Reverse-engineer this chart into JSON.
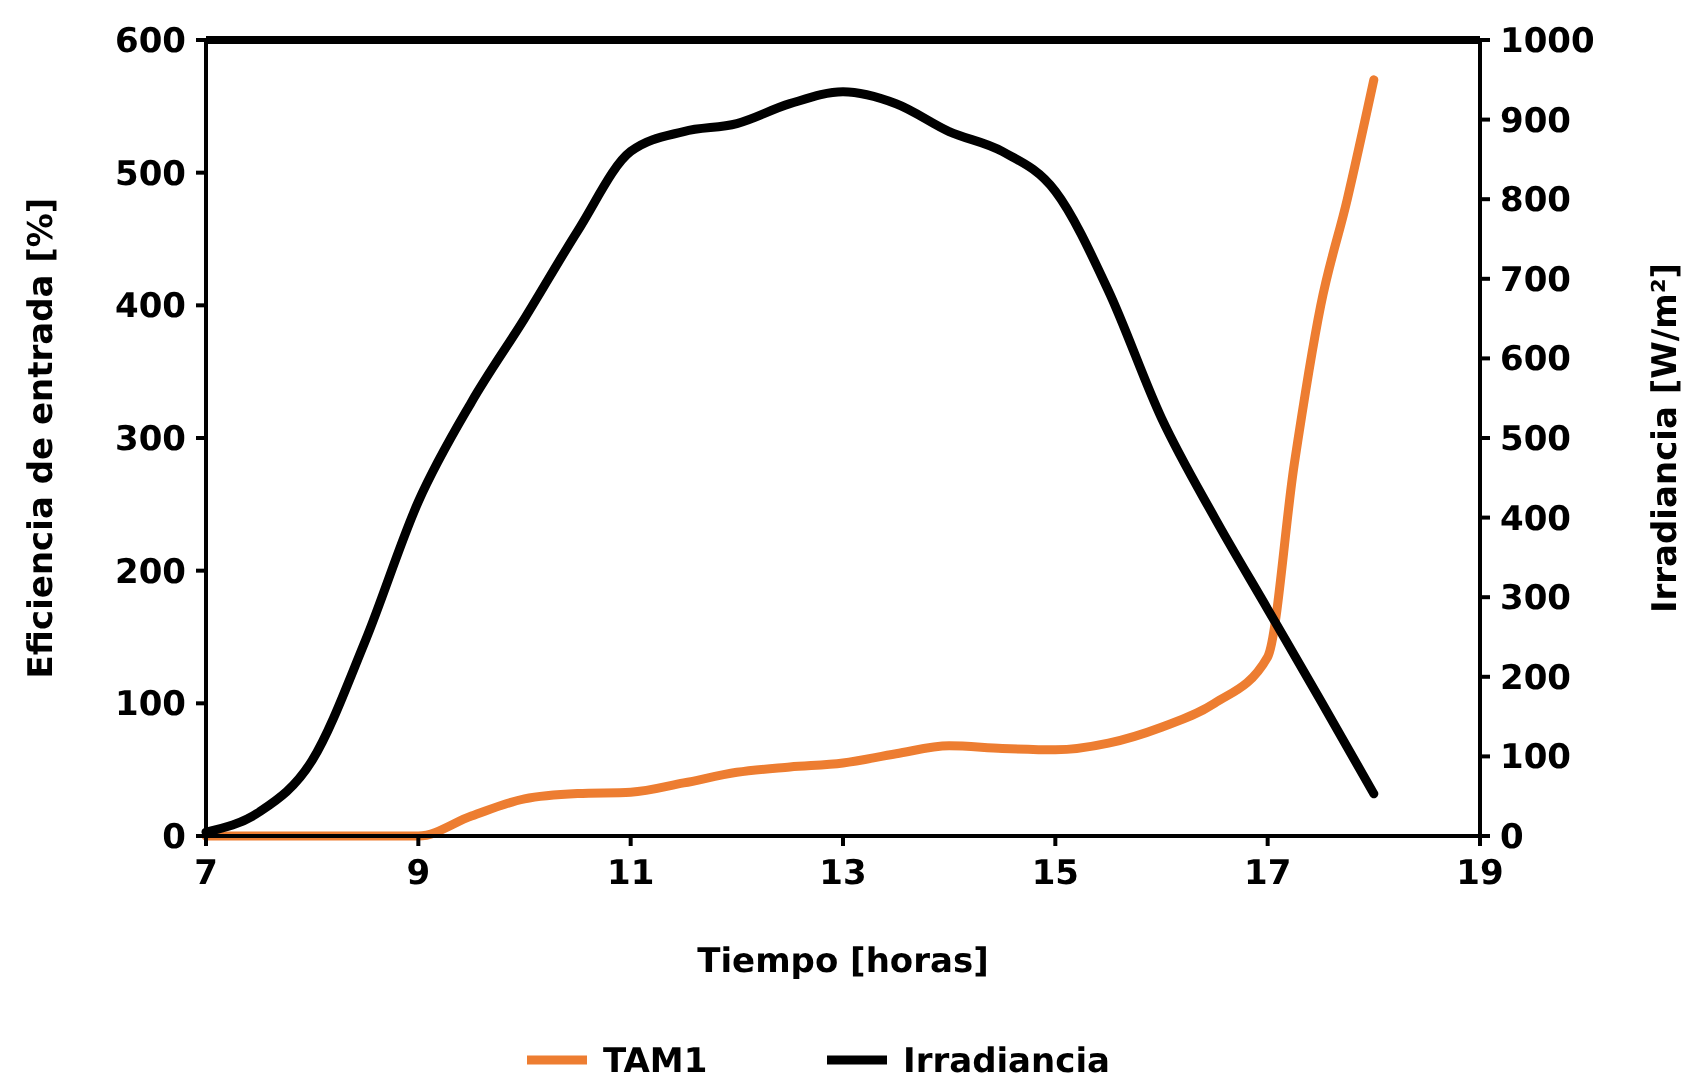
{
  "chart_data": {
    "type": "line",
    "xlabel": "Tiempo [horas]",
    "ylabel": "Eficiencia de entrada [%]",
    "y2label": "Irradiancia [W/m²]",
    "xlim": [
      7,
      19
    ],
    "xticks": [
      7,
      9,
      11,
      13,
      15,
      17,
      19
    ],
    "ylim": [
      0,
      600
    ],
    "yticks": [
      0,
      100,
      200,
      300,
      400,
      500,
      600
    ],
    "y2lim": [
      0,
      1000
    ],
    "y2ticks": [
      0,
      100,
      200,
      300,
      400,
      500,
      600,
      700,
      800,
      900,
      1000
    ],
    "legend": "bottom",
    "grid": false,
    "marker": "none",
    "line_style": "solid",
    "series": [
      {
        "name": "TAM1",
        "color": "#ed7d31",
        "x": [
          7,
          8,
          9,
          9.5,
          10,
          10.5,
          11,
          11.5,
          12,
          12.5,
          13,
          13.5,
          14,
          14.5,
          15,
          15.5,
          16,
          16.5,
          17,
          17.25,
          17.5,
          17.75,
          18
        ],
        "values": [
          0,
          0,
          0,
          15,
          28,
          32,
          33,
          40,
          48,
          52,
          55,
          62,
          68,
          66,
          65,
          70,
          82,
          100,
          135,
          280,
          400,
          480,
          570
        ]
      },
      {
        "name": "Irradiancia",
        "color": "#000000",
        "axis": "y2",
        "x": [
          7,
          7.5,
          8,
          8.5,
          9,
          9.5,
          10,
          10.5,
          11,
          11.5,
          12,
          12.5,
          13,
          13.5,
          14,
          14.5,
          15,
          15.5,
          16,
          16.5,
          17,
          17.5,
          18
        ],
        "values": [
          5,
          30,
          95,
          245,
          420,
          545,
          650,
          760,
          860,
          885,
          895,
          920,
          935,
          920,
          885,
          860,
          810,
          685,
          525,
          400,
          285,
          170,
          53
        ]
      }
    ]
  }
}
